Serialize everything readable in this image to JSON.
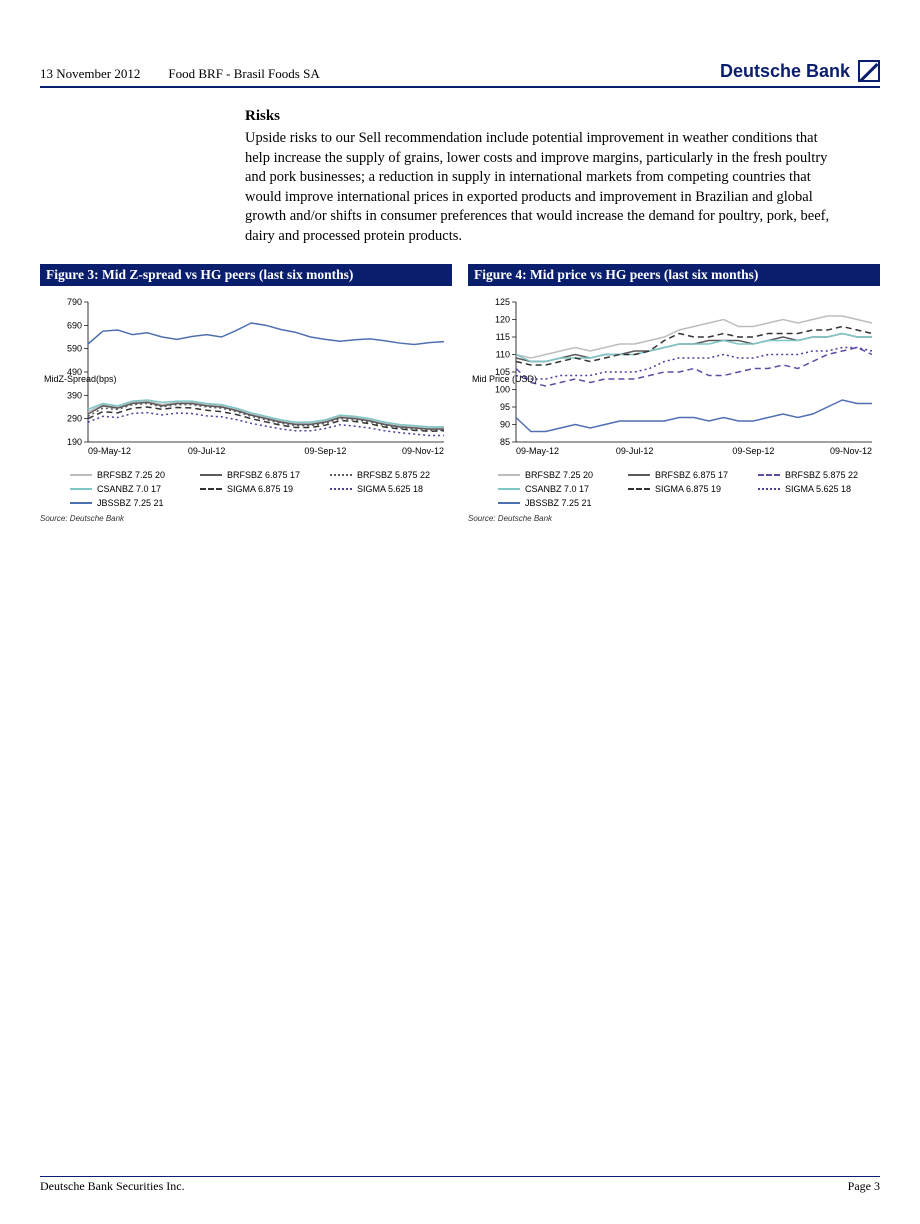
{
  "header": {
    "date": "13 November 2012",
    "title": "Food BRF - Brasil Foods SA",
    "brand": "Deutsche Bank"
  },
  "risks": {
    "heading": "Risks",
    "body": "Upside risks to our Sell recommendation include potential improvement in weather conditions that help increase the supply of grains, lower costs and improve margins, particularly in the fresh poultry and pork businesses; a reduction in supply in international markets from competing countries that would improve international prices in exported products and improvement in Brazilian and global growth and/or shifts in consumer preferences that would increase the demand for poultry, pork, beef, dairy and processed protein products."
  },
  "figure3": {
    "title": "Figure 3: Mid Z-spread vs HG peers (last six months)",
    "yaxis_label": "MidZ-Spread(bps)",
    "y_min": 190,
    "y_max": 790,
    "y_step": 100,
    "x_ticks": [
      "09-May-12",
      "09-Jul-12",
      "09-Sep-12",
      "09-Nov-12"
    ],
    "series": [
      {
        "name": "BRFSBZ 7.25 20",
        "color": "#bdbdbd",
        "dash": "solid",
        "values": [
          320,
          350,
          340,
          360,
          365,
          350,
          360,
          360,
          350,
          345,
          330,
          310,
          295,
          280,
          270,
          270,
          280,
          300,
          295,
          285,
          270,
          260,
          255,
          250,
          250
        ]
      },
      {
        "name": "BRFSBZ 6.875 17",
        "color": "#5a5a5a",
        "dash": "solid",
        "values": [
          310,
          345,
          335,
          355,
          360,
          345,
          355,
          355,
          345,
          340,
          325,
          305,
          290,
          275,
          265,
          265,
          275,
          295,
          290,
          280,
          265,
          255,
          250,
          245,
          245
        ]
      },
      {
        "name": "BRFSBZ 5.875 22",
        "color": "#5a5a5a",
        "dash": "dotted",
        "values": [
          300,
          335,
          330,
          350,
          355,
          340,
          350,
          350,
          340,
          335,
          320,
          300,
          285,
          270,
          260,
          260,
          270,
          290,
          285,
          275,
          260,
          250,
          245,
          240,
          240
        ]
      },
      {
        "name": "CSANBZ 7.0 17",
        "color": "#7fc6c6",
        "dash": "solid",
        "values": [
          330,
          355,
          345,
          365,
          370,
          360,
          365,
          365,
          355,
          350,
          335,
          315,
          300,
          285,
          275,
          275,
          285,
          305,
          300,
          290,
          275,
          265,
          260,
          255,
          255
        ]
      },
      {
        "name": "SIGMA 6.875 19",
        "color": "#333333",
        "dash": "dashed",
        "values": [
          290,
          320,
          315,
          335,
          340,
          330,
          338,
          336,
          326,
          320,
          308,
          290,
          276,
          262,
          252,
          252,
          262,
          282,
          278,
          268,
          254,
          246,
          240,
          236,
          238
        ]
      },
      {
        "name": "SIGMA 5.625 18",
        "color": "#4a3f9b",
        "dash": "dotted",
        "values": [
          275,
          300,
          295,
          312,
          316,
          306,
          314,
          312,
          302,
          298,
          286,
          270,
          258,
          246,
          238,
          238,
          248,
          264,
          258,
          250,
          238,
          230,
          224,
          218,
          218
        ]
      },
      {
        "name": "JBSSBZ 7.25 21",
        "color": "#4f6fb3",
        "dash": "solid",
        "values": [
          610,
          665,
          670,
          650,
          658,
          640,
          630,
          642,
          650,
          640,
          668,
          700,
          690,
          672,
          660,
          640,
          630,
          622,
          628,
          632,
          624,
          614,
          608,
          616,
          620
        ]
      }
    ],
    "source": "Source: Deutsche Bank"
  },
  "figure4": {
    "title": "Figure 4: Mid price vs HG peers (last six months)",
    "yaxis_label": "Mid Price (USD)",
    "y_min": 85,
    "y_max": 125,
    "y_step": 5,
    "x_ticks": [
      "09-May-12",
      "09-Jul-12",
      "09-Sep-12",
      "09-Nov-12"
    ],
    "series": [
      {
        "name": "BRFSBZ 7.25 20",
        "color": "#bdbdbd",
        "dash": "solid",
        "values": [
          110,
          109,
          110,
          111,
          112,
          111,
          112,
          113,
          113,
          114,
          115,
          117,
          118,
          119,
          120,
          118,
          118,
          119,
          120,
          119,
          120,
          121,
          121,
          120,
          119
        ]
      },
      {
        "name": "BRFSBZ 6.875 17",
        "color": "#5a5a5a",
        "dash": "solid",
        "values": [
          109,
          108,
          108,
          109,
          110,
          109,
          110,
          110,
          111,
          111,
          112,
          113,
          113,
          114,
          114,
          114,
          113,
          114,
          115,
          114,
          115,
          115,
          116,
          115,
          115
        ]
      },
      {
        "name": "BRFSBZ 5.875 22",
        "color": "#5f4aa6",
        "dash": "dashed",
        "values": [
          106,
          102,
          101,
          102,
          103,
          102,
          103,
          103,
          103,
          104,
          105,
          105,
          106,
          104,
          104,
          105,
          106,
          106,
          107,
          106,
          108,
          110,
          111,
          112,
          110
        ]
      },
      {
        "name": "CSANBZ 7.0 17",
        "color": "#7fc6c6",
        "dash": "solid",
        "values": [
          110,
          108,
          108,
          109,
          109,
          109,
          110,
          110,
          110,
          111,
          112,
          113,
          113,
          113,
          114,
          113,
          113,
          114,
          114,
          114,
          115,
          115,
          116,
          115,
          115
        ]
      },
      {
        "name": "SIGMA 6.875 19",
        "color": "#333333",
        "dash": "dashed",
        "values": [
          108,
          107,
          107,
          108,
          109,
          108,
          109,
          110,
          110,
          111,
          114,
          116,
          115,
          115,
          116,
          115,
          115,
          116,
          116,
          116,
          117,
          117,
          118,
          117,
          116
        ]
      },
      {
        "name": "SIGMA 5.625 18",
        "color": "#4a3f9b",
        "dash": "dotted",
        "values": [
          104,
          103,
          103,
          104,
          104,
          104,
          105,
          105,
          105,
          106,
          108,
          109,
          109,
          109,
          110,
          109,
          109,
          110,
          110,
          110,
          111,
          111,
          112,
          112,
          111
        ]
      },
      {
        "name": "JBSSBZ 7.25 21",
        "color": "#4f6fb3",
        "dash": "solid",
        "values": [
          92,
          88,
          88,
          89,
          90,
          89,
          90,
          91,
          91,
          91,
          91,
          92,
          92,
          91,
          92,
          91,
          91,
          92,
          93,
          92,
          93,
          95,
          97,
          96,
          96
        ]
      }
    ],
    "source": "Source: Deutsche Bank"
  },
  "footer": {
    "left": "Deutsche Bank Securities Inc.",
    "right": "Page 3"
  },
  "style": {
    "brand_color": "#0a1e6e",
    "chart_font": "Arial",
    "tick_fontsize": 9,
    "legend_fontsize": 9
  }
}
